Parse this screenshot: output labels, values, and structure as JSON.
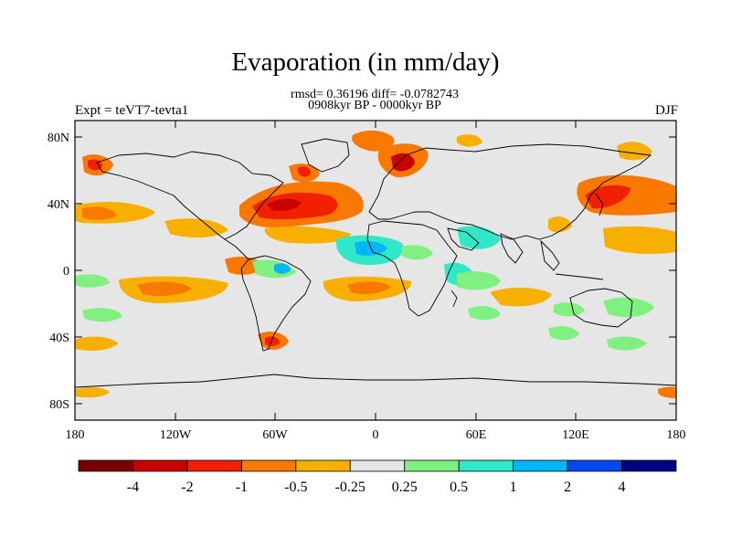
{
  "title": "Evaporation (in mm/day)",
  "stats_line": "rmsd= 0.36196 diff= -0.0782743",
  "period_line": "0908kyr BP - 0000kyr BP",
  "experiment": "Expt = teVT7-tevta1",
  "season": "DJF",
  "lat_labels": [
    "80N",
    "40N",
    "0",
    "40S",
    "80S"
  ],
  "lon_labels": [
    "180",
    "120W",
    "60W",
    "0",
    "60E",
    "120E",
    "180"
  ],
  "colorbar": {
    "colors": [
      "#7a0000",
      "#c80000",
      "#f02000",
      "#f87800",
      "#f8b000",
      "#e6e6e6",
      "#80f080",
      "#30e8c8",
      "#00b8f8",
      "#0048f0",
      "#000080"
    ],
    "labels": [
      "-4",
      "-2",
      "-1",
      "-0.5",
      "-0.25",
      "0.25",
      "0.5",
      "1",
      "2",
      "4"
    ]
  }
}
